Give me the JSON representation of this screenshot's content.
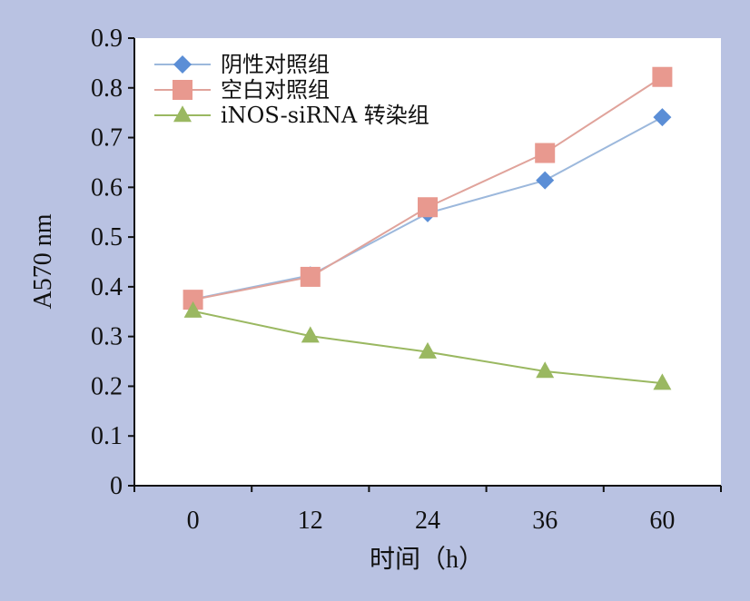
{
  "chart_data": {
    "type": "line",
    "title": "",
    "xlabel": "时间（h）",
    "ylabel": "A570 nm",
    "categories": [
      "0",
      "12",
      "24",
      "36",
      "60"
    ],
    "ylim": [
      0,
      0.9
    ],
    "yticks": [
      "0",
      "0.1",
      "0.2",
      "0.3",
      "0.4",
      "0.5",
      "0.6",
      "0.7",
      "0.8",
      "0.9"
    ],
    "grid": false,
    "legend_position": "top-left",
    "series": [
      {
        "name": "阴性对照组",
        "values": [
          0.375,
          0.423,
          0.548,
          0.614,
          0.741
        ],
        "color": "#5b8ed6",
        "line_color": "#9cb8dc",
        "marker": "diamond"
      },
      {
        "name": "空白对照组",
        "values": [
          0.374,
          0.42,
          0.56,
          0.669,
          0.822
        ],
        "color": "#e8998f",
        "line_color": "#e0a39b",
        "marker": "square"
      },
      {
        "name": "iNOS-siRNA 转染组",
        "values": [
          0.351,
          0.301,
          0.269,
          0.23,
          0.206
        ],
        "color": "#9ab861",
        "line_color": "#9ab861",
        "marker": "triangle"
      }
    ]
  }
}
